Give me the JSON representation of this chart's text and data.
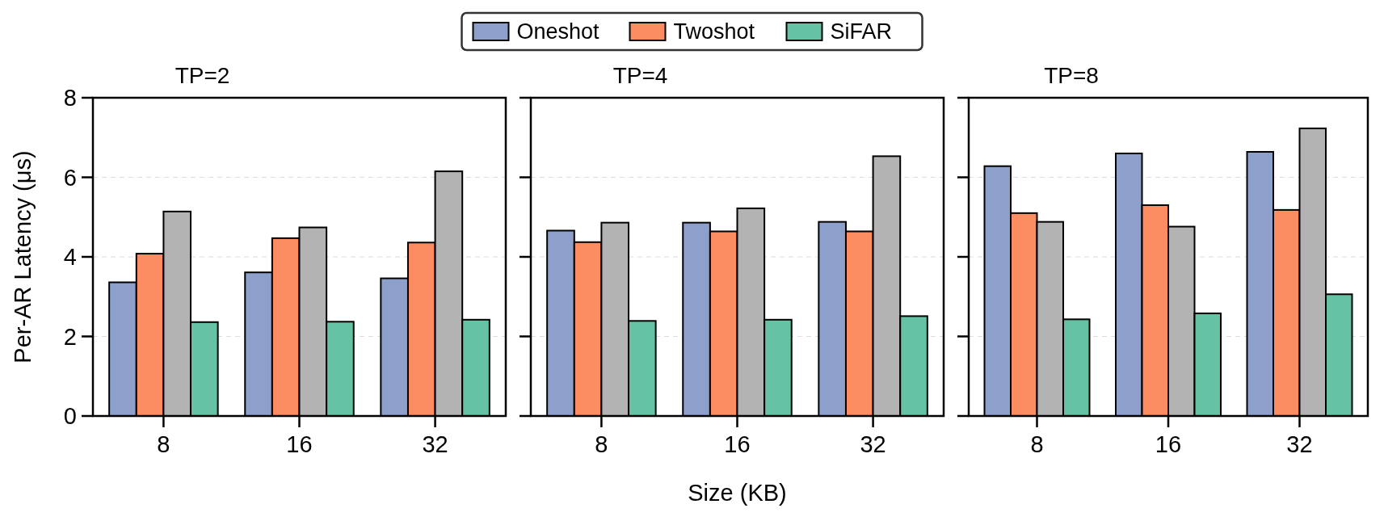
{
  "chart_data": [
    {
      "type": "bar",
      "title": "TP=2",
      "ylabel": "Per-AR Latency (μs)",
      "categories": [
        "8",
        "16",
        "32"
      ],
      "ylim": [
        0,
        8
      ],
      "yticks": [
        0,
        2,
        4,
        6,
        8
      ],
      "grid": "y",
      "legend": "top",
      "series": [
        {
          "name": "Oneshot",
          "color": "#8da0cb",
          "values": [
            3.36,
            3.61,
            3.46
          ]
        },
        {
          "name": "Twoshot",
          "color": "#fc8d62",
          "values": [
            4.08,
            4.47,
            4.36
          ]
        },
        {
          "color": "#b3b3b3",
          "values": [
            5.14,
            4.74,
            6.15
          ]
        },
        {
          "name": "SiFAR",
          "color": "#66c2a5",
          "values": [
            2.36,
            2.37,
            2.42
          ]
        }
      ]
    },
    {
      "type": "bar",
      "title": "TP=4",
      "xlabel": "Size (KB)",
      "categories": [
        "8",
        "16",
        "32"
      ],
      "ylim": [
        0,
        8
      ],
      "yticks": [
        0,
        2,
        4,
        6,
        8
      ],
      "grid": "y",
      "tick_labels": "x",
      "series": [
        {
          "color": "#8da0cb",
          "values": [
            4.66,
            4.86,
            4.88
          ]
        },
        {
          "color": "#fc8d62",
          "values": [
            4.37,
            4.64,
            4.64
          ]
        },
        {
          "color": "#b3b3b3",
          "values": [
            4.86,
            5.22,
            6.53
          ]
        },
        {
          "color": "#66c2a5",
          "values": [
            2.39,
            2.42,
            2.51
          ]
        }
      ]
    },
    {
      "type": "bar",
      "title": "TP=8",
      "categories": [
        "8",
        "16",
        "32"
      ],
      "ylim": [
        0,
        8
      ],
      "yticks": [
        0,
        2,
        4,
        6,
        8
      ],
      "grid": "y",
      "tick_labels": "x",
      "series": [
        {
          "color": "#8da0cb",
          "values": [
            6.28,
            6.6,
            6.64
          ]
        },
        {
          "color": "#fc8d62",
          "values": [
            5.1,
            5.3,
            5.18
          ]
        },
        {
          "color": "#b3b3b3",
          "values": [
            4.88,
            4.76,
            7.23
          ]
        },
        {
          "color": "#66c2a5",
          "values": [
            2.43,
            2.58,
            3.06
          ]
        }
      ]
    }
  ]
}
